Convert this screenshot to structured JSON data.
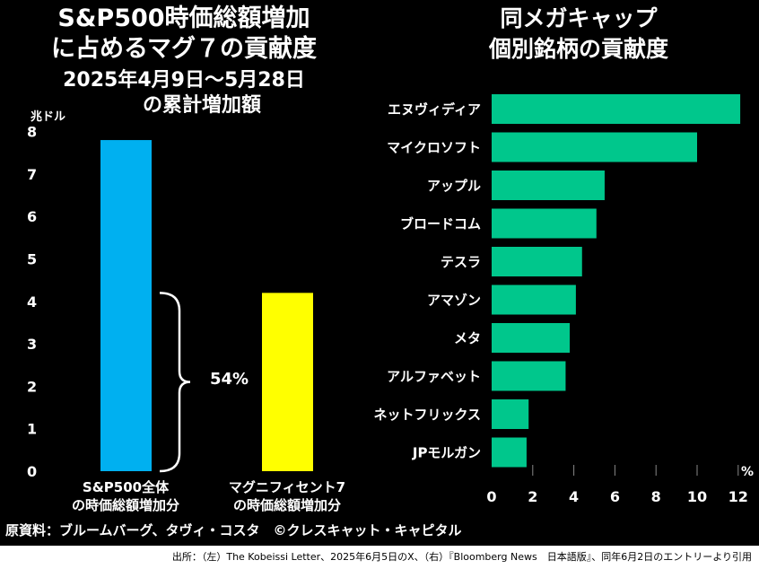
{
  "left_title": [
    "S&P500時価総額増加",
    "に占めるマグ７の貢献度",
    "2025年4月9日〜5月28日",
    "の累計増加額"
  ],
  "right_title": [
    "同メガキャップ",
    "個別銘柄の貢献度"
  ],
  "source": "原資料：ブルームバーグ、タヴィ・コスタ　©クレスキャット・キャピタル",
  "citation": "出所：（左）The Kobeissi Letter、2025年6月5日のX、（右）『Bloomberg News　日本語版』、同年6月2日のエントリーより引用",
  "colors": {
    "blue": "#00b0f0",
    "yellow": "#ffff00",
    "green": "#00c78c"
  },
  "chart_data": [
    {
      "type": "bar",
      "title": "S&P500時価総額増加に占めるマグ７の貢献度 2025年4月9日〜5月28日の累計増加額",
      "ylabel": "兆ドル",
      "ylim": [
        0,
        8
      ],
      "yticks": [
        "0",
        "1",
        "2",
        "3",
        "4",
        "5",
        "6",
        "7",
        "8"
      ],
      "categories": [
        "S&P500全体\nの時価総額増加分",
        "マグニフィセント7\nの時価総額増加分"
      ],
      "categories_lines": [
        [
          "S&P500全体",
          "の時価総額増加分"
        ],
        [
          "マグニフィセント7",
          "の時価総額増加分"
        ]
      ],
      "values": [
        7.8,
        4.2
      ],
      "annotation": "54%"
    },
    {
      "type": "bar",
      "orientation": "horizontal",
      "title": "同メガキャップ個別銘柄の貢献度",
      "xlabel": "%",
      "xlim": [
        0,
        12
      ],
      "xticks": [
        "0",
        "2",
        "4",
        "6",
        "8",
        "10",
        "12"
      ],
      "categories": [
        "エヌヴィディア",
        "マイクロソフト",
        "アップル",
        "ブロードコム",
        "テスラ",
        "アマゾン",
        "メタ",
        "アルファベット",
        "ネットフリックス",
        "JPモルガン"
      ],
      "values": [
        12.1,
        10.0,
        5.5,
        5.1,
        4.4,
        4.1,
        3.8,
        3.6,
        1.8,
        1.7
      ]
    }
  ]
}
